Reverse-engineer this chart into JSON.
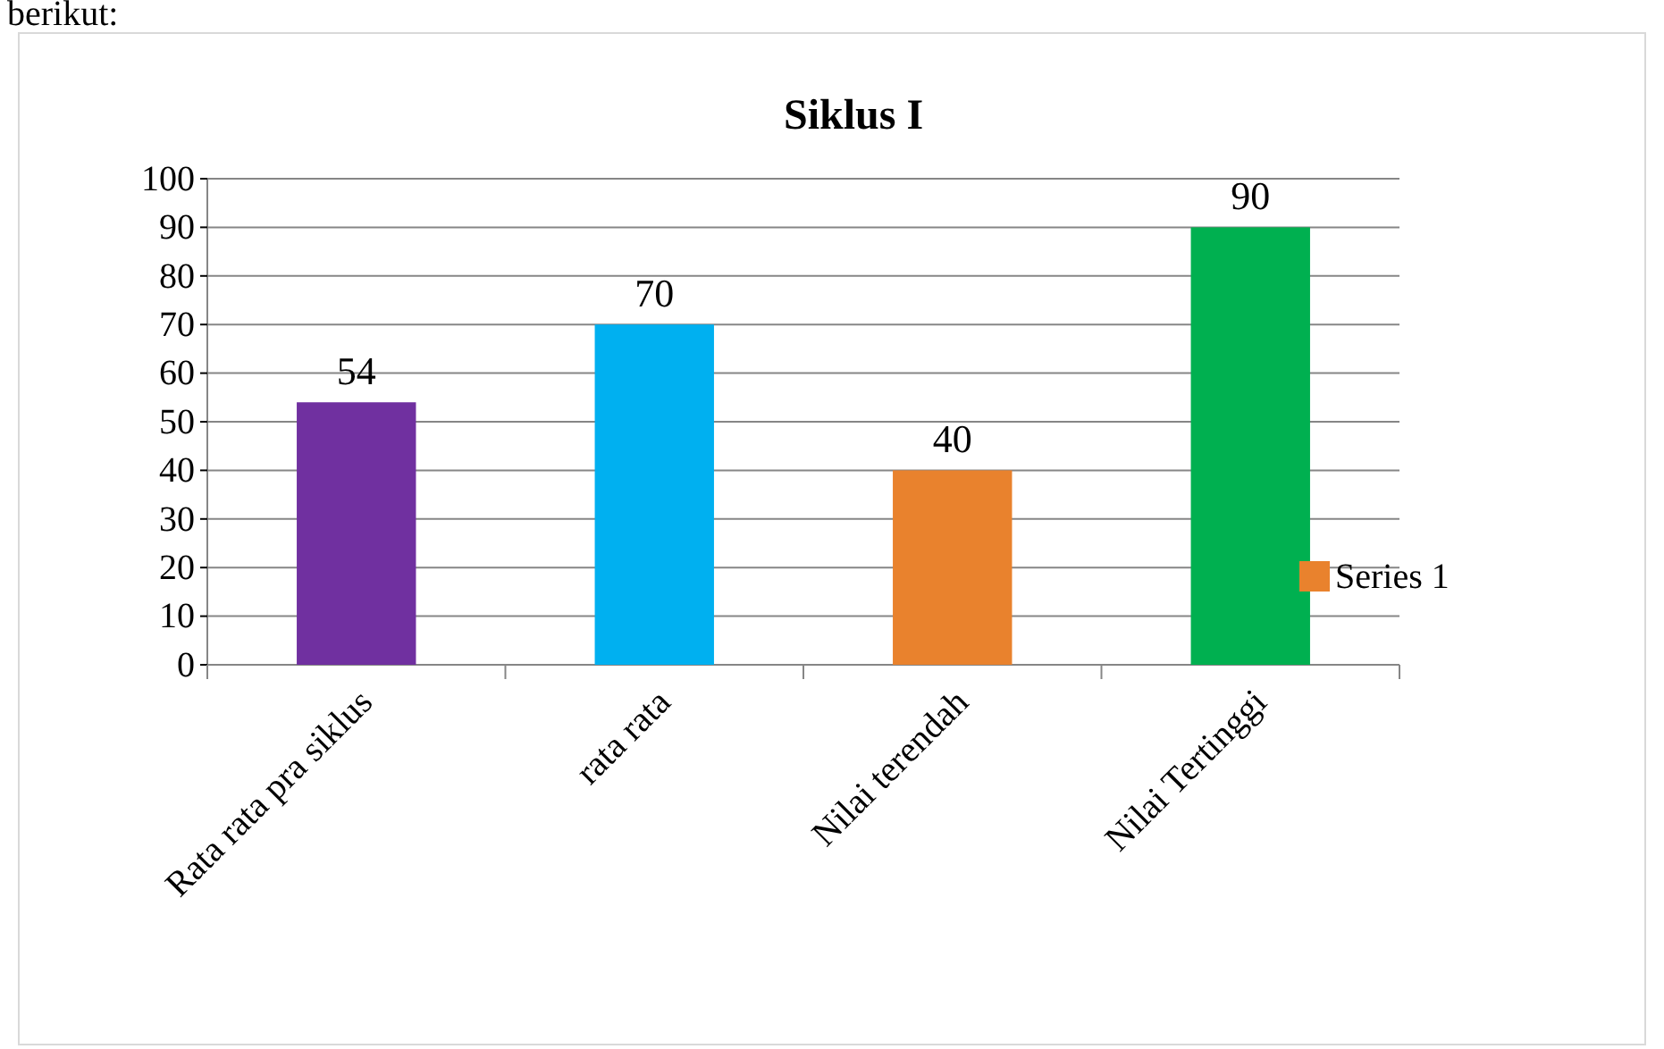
{
  "chart_data": {
    "type": "bar",
    "title": "Siklus I",
    "annotations": [
      "berikut:"
    ],
    "categories": [
      "Rata rata pra siklus",
      "rata rata",
      "Nilai terendah",
      "Nilai Tertinggi"
    ],
    "series": [
      {
        "name": "Series 1",
        "values": [
          54,
          70,
          40,
          90
        ]
      }
    ],
    "colors": [
      "#7030a0",
      "#00b0f0",
      "#e9822d",
      "#00b050"
    ],
    "ylim": [
      0,
      100
    ],
    "yticks": [
      0,
      10,
      20,
      30,
      40,
      50,
      60,
      70,
      80,
      90,
      100
    ],
    "grid": "y",
    "legend": "right",
    "data_labels": true
  }
}
